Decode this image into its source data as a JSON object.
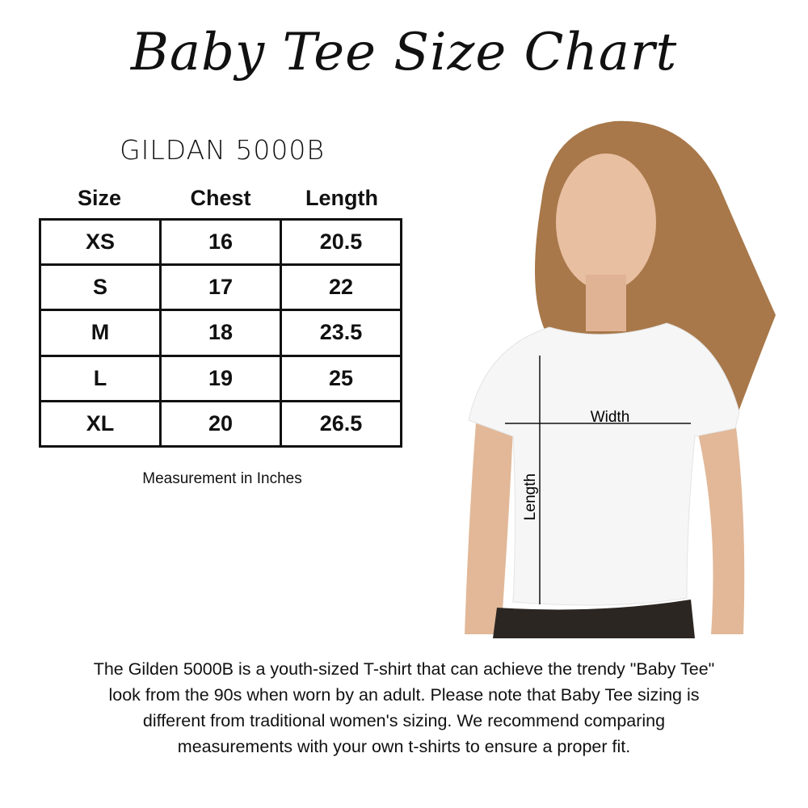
{
  "title": "Baby Tee Size Chart",
  "brand": "GILDAN 5000B",
  "table": {
    "headers": [
      "Size",
      "Chest",
      "Length"
    ],
    "rows": [
      [
        "XS",
        "16",
        "20.5"
      ],
      [
        "S",
        "17",
        "22"
      ],
      [
        "M",
        "18",
        "23.5"
      ],
      [
        "L",
        "19",
        "25"
      ],
      [
        "XL",
        "20",
        "26.5"
      ]
    ]
  },
  "unit_note": "Measurement in Inches",
  "photo": {
    "width_label": "Width",
    "length_label": "Length"
  },
  "description": [
    "The Gilden 5000B is a youth-sized T-shirt that can achieve the trendy \"Baby Tee\"",
    "look from the 90s when worn by an adult. Please note that Baby Tee sizing is",
    "different from traditional women's sizing. We recommend comparing",
    "measurements with your own t-shirts to ensure a proper fit."
  ]
}
